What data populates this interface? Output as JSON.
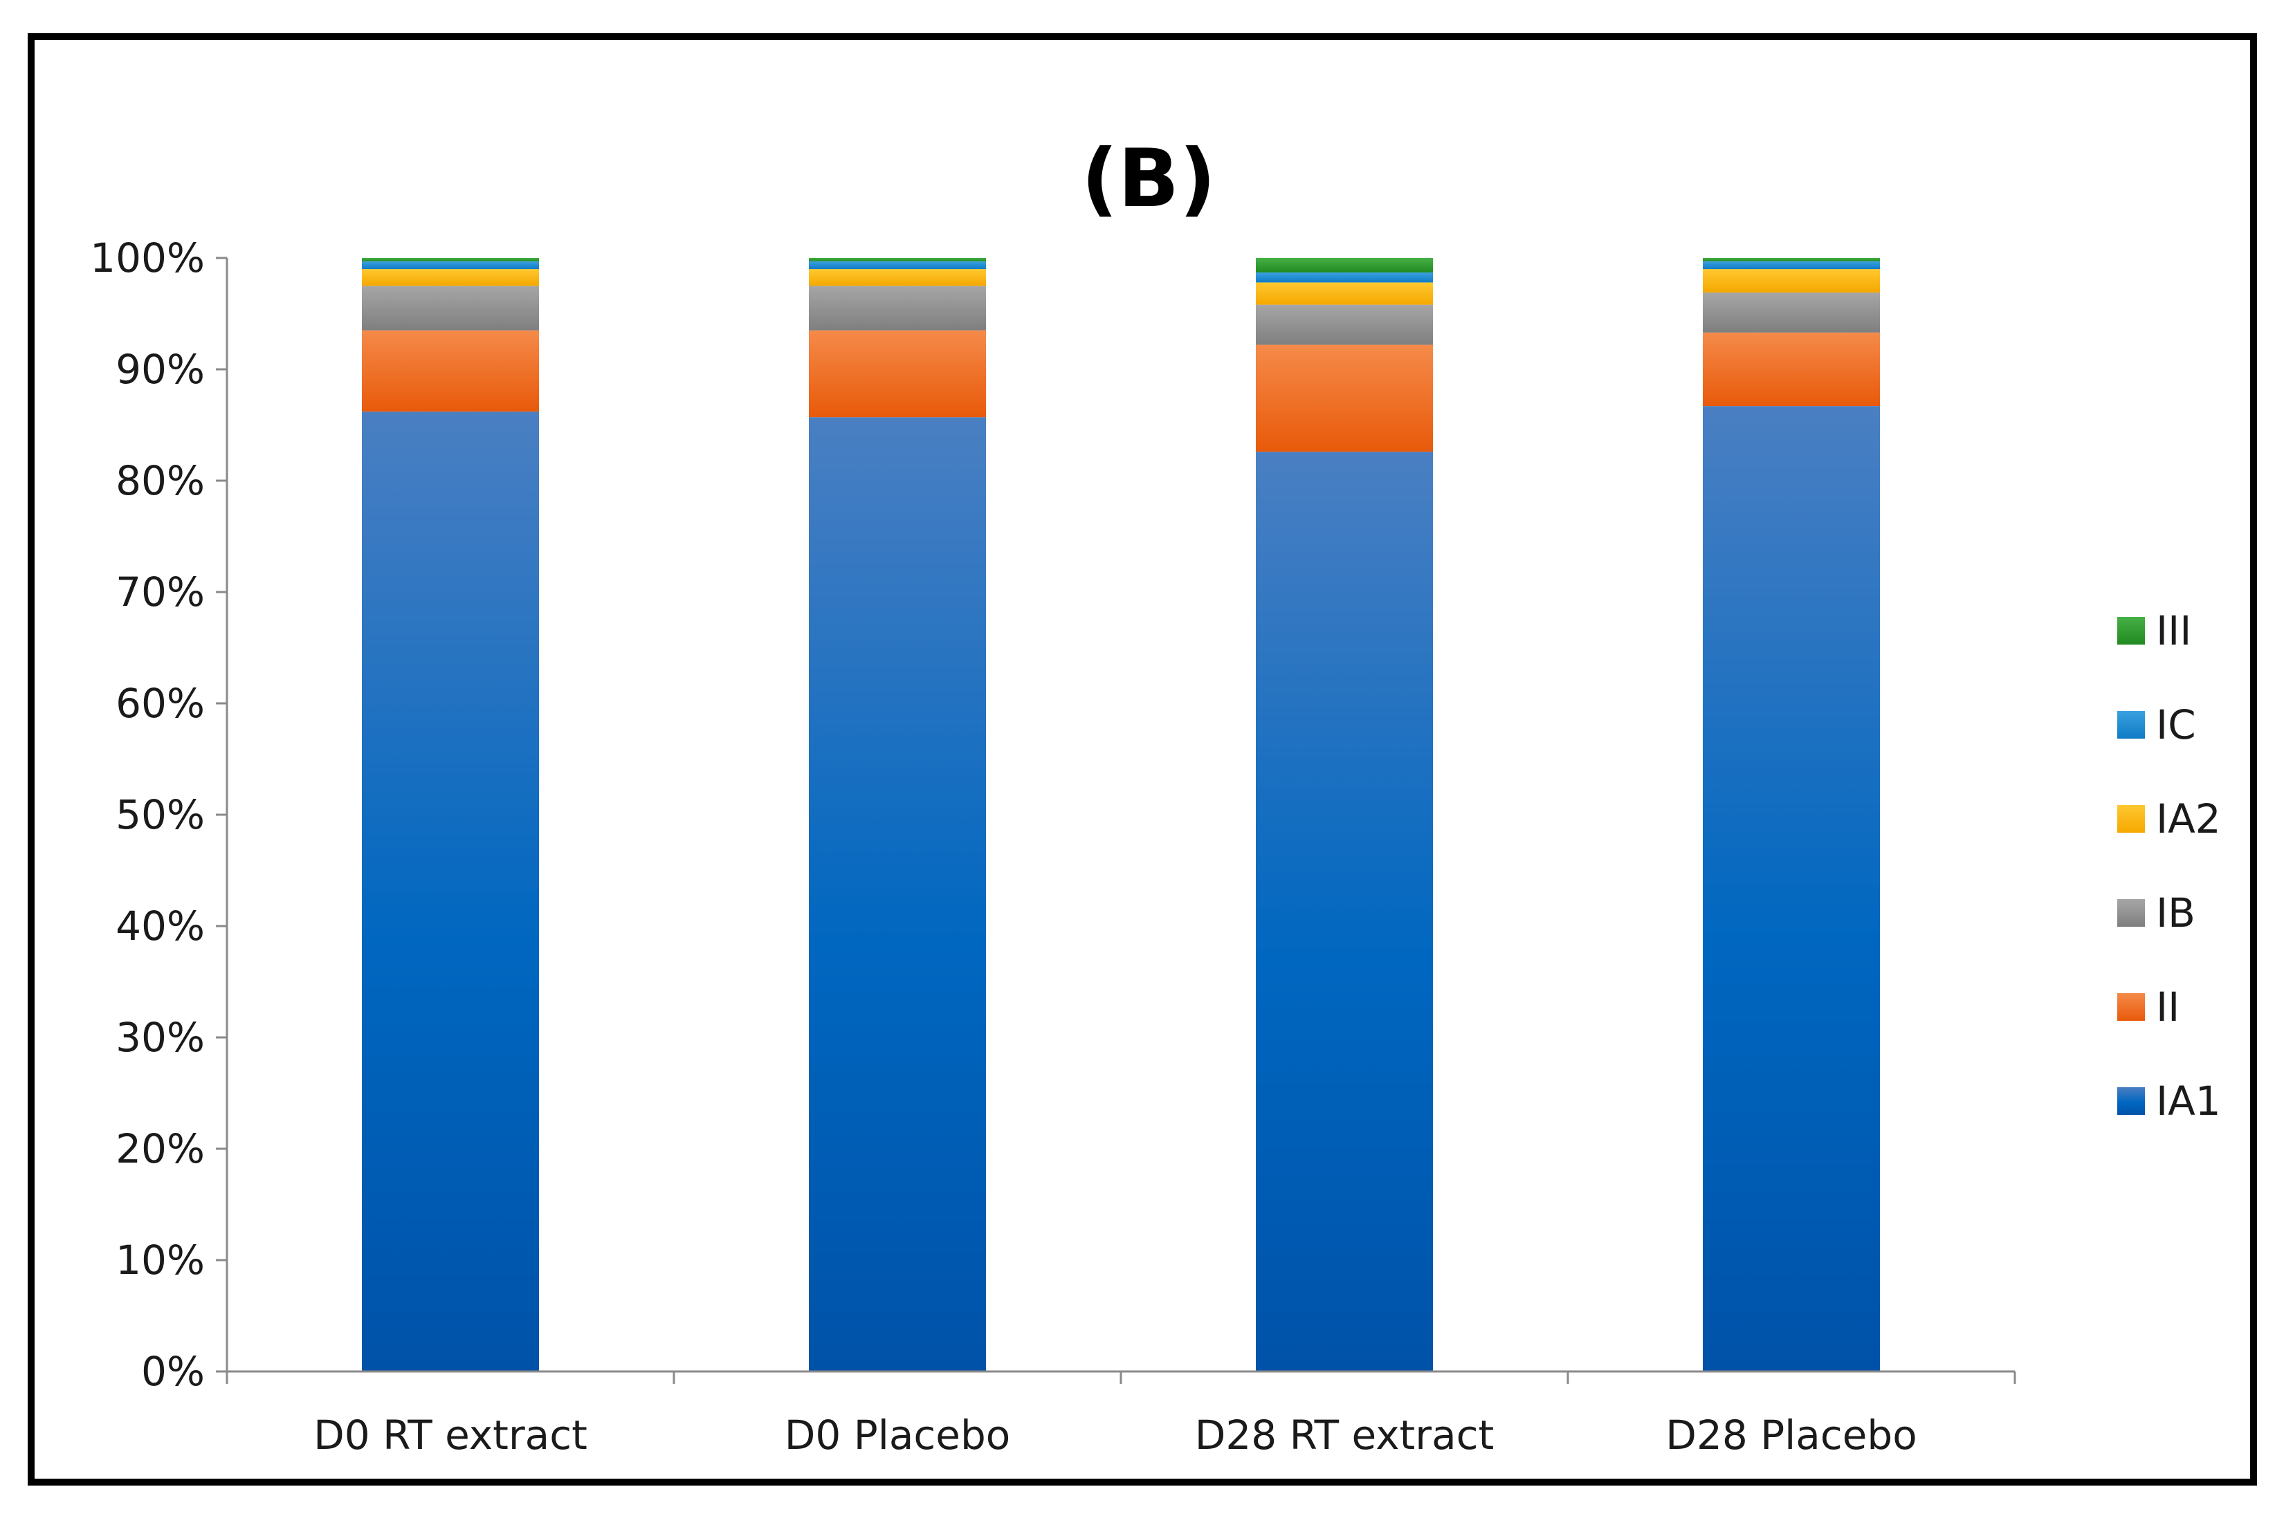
{
  "chart_data": {
    "type": "bar",
    "stacked": true,
    "title": "(B)",
    "xlabel": "",
    "ylabel": "",
    "ylim": [
      0,
      100
    ],
    "y_ticks": [
      "0%",
      "10%",
      "20%",
      "30%",
      "40%",
      "50%",
      "60%",
      "70%",
      "80%",
      "90%",
      "100%"
    ],
    "categories": [
      "D0 RT extract",
      "D0 Placebo",
      "D28 RT extract",
      "D28 Placebo"
    ],
    "series": [
      {
        "name": "IA1",
        "color": "#005fba",
        "values": [
          86.2,
          85.7,
          82.6,
          86.7
        ]
      },
      {
        "name": "II",
        "color": "#f06414",
        "values": [
          7.3,
          7.8,
          9.6,
          6.6
        ]
      },
      {
        "name": "IB",
        "color": "#8c8c8c",
        "values": [
          4.0,
          4.0,
          3.6,
          3.6
        ]
      },
      {
        "name": "IA2",
        "color": "#ffb400",
        "values": [
          1.5,
          1.5,
          2.0,
          2.1
        ]
      },
      {
        "name": "IC",
        "color": "#1a8ad4",
        "values": [
          0.7,
          0.7,
          0.9,
          0.7
        ]
      },
      {
        "name": "III",
        "color": "#2ca02c",
        "values": [
          0.3,
          0.3,
          1.3,
          0.3
        ]
      }
    ],
    "legend_order": [
      "III",
      "IC",
      "IA2",
      "IB",
      "II",
      "IA1"
    ],
    "legend_position": "right",
    "grid": false
  }
}
